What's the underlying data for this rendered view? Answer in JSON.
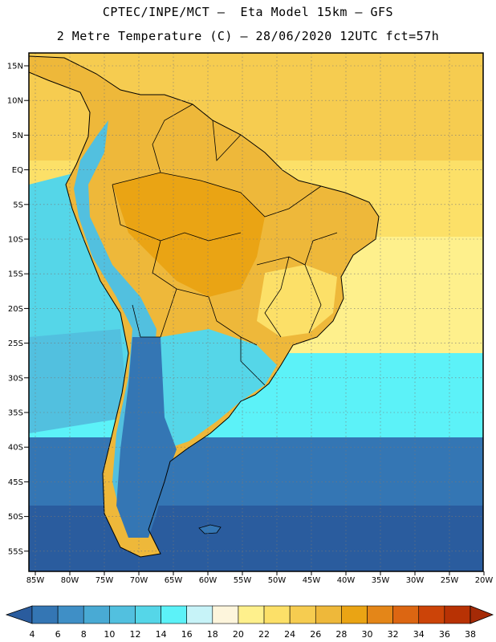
{
  "header": {
    "line1": "CPTEC/INPE/MCT –  Eta Model 15km – GFS",
    "line2": "2 Metre Temperature (C) – 28/06/2020 12UTC fct=57h"
  },
  "axes": {
    "lat_labels": [
      "15N",
      "10N",
      "5N",
      "EQ",
      "5S",
      "10S",
      "15S",
      "20S",
      "25S",
      "30S",
      "35S",
      "40S",
      "45S",
      "50S",
      "55S"
    ],
    "lat_values": [
      15,
      10,
      5,
      0,
      -5,
      -10,
      -15,
      -20,
      -25,
      -30,
      -35,
      -40,
      -45,
      -50,
      -55
    ],
    "lon_labels": [
      "85W",
      "80W",
      "75W",
      "70W",
      "65W",
      "60W",
      "55W",
      "50W",
      "45W",
      "40W",
      "35W",
      "30W",
      "25W",
      "20W"
    ],
    "lon_values": [
      -85,
      -80,
      -75,
      -70,
      -65,
      -60,
      -55,
      -50,
      -45,
      -40,
      -35,
      -30,
      -25,
      -20
    ]
  },
  "colorbar": {
    "labels": [
      "4",
      "6",
      "8",
      "10",
      "12",
      "14",
      "16",
      "18",
      "20",
      "22",
      "24",
      "26",
      "28",
      "30",
      "32",
      "34",
      "36",
      "38"
    ],
    "colors": [
      "#2a5c9e",
      "#3476b4",
      "#3f8fc6",
      "#49aad4",
      "#52c0df",
      "#55d6e8",
      "#5cf2f8",
      "#c7f3f8",
      "#fdf5dc",
      "#fef08c",
      "#fce068",
      "#f6cc50",
      "#eeb83a",
      "#eaa414",
      "#e48618",
      "#dc6612",
      "#cc4408",
      "#b83204",
      "#a52a06"
    ],
    "under_color": "#2a5c9e",
    "over_color": "#a52a06"
  },
  "map": {
    "ocean_colors": {
      "north": "#f6cc50",
      "equator": "#fce068",
      "subtropic": "#fef08c",
      "mid": "#5cf2f8",
      "south": "#3476b4",
      "far_south": "#2a5c9e"
    },
    "land_colors": {
      "amazon": "#eeb83a",
      "hot": "#eaa414",
      "andes": "#52c0df",
      "patagonia": "#3476b4",
      "pampa": "#55d6e8"
    }
  }
}
